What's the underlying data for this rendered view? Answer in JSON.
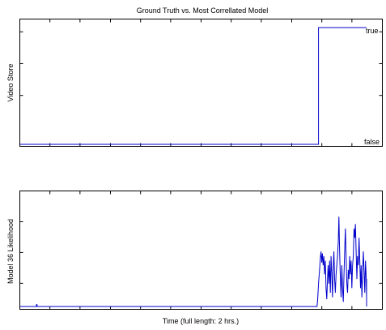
{
  "chart_data": [
    {
      "type": "line",
      "title": "Ground Truth vs. Most Correllated Model",
      "xlabel": "",
      "ylabel": "Video Store",
      "annotations": [
        "true",
        "false"
      ],
      "x_tick_labels": [],
      "y_tick_labels": [],
      "xlim": [
        0,
        1
      ],
      "ylim": [
        0,
        1
      ],
      "colors": {
        "line": "#0000cc"
      },
      "series": [
        {
          "x": [
            0.0,
            0.831,
            0.831,
            0.965
          ],
          "y": [
            0,
            0,
            1,
            1
          ]
        }
      ]
    },
    {
      "type": "line",
      "title": "",
      "xlabel": "Time (full length: 2 hrs.)",
      "ylabel": "Model 36 Likelihood",
      "x_tick_labels": [],
      "y_tick_labels": [],
      "xlim": [
        0,
        1
      ],
      "ylim": [
        0,
        1
      ],
      "colors": {
        "line": "#0000cc"
      },
      "series": [
        {
          "x": [
            0.0,
            0.045,
            0.045,
            0.047,
            0.047,
            0.827,
            0.829,
            0.831,
            0.834,
            0.836,
            0.838,
            0.84,
            0.842,
            0.844,
            0.846,
            0.848,
            0.85,
            0.852,
            0.854,
            0.856,
            0.858,
            0.86,
            0.862,
            0.864,
            0.866,
            0.868,
            0.87,
            0.872,
            0.874,
            0.876,
            0.878,
            0.88,
            0.882,
            0.884,
            0.886,
            0.888,
            0.89,
            0.892,
            0.894,
            0.896,
            0.898,
            0.9,
            0.902,
            0.904,
            0.906,
            0.908,
            0.91,
            0.912,
            0.914,
            0.916,
            0.918,
            0.92,
            0.922,
            0.924,
            0.926,
            0.928,
            0.93,
            0.932,
            0.934,
            0.936,
            0.938,
            0.94,
            0.942,
            0.944,
            0.946,
            0.948,
            0.95,
            0.952,
            0.954,
            0.956,
            0.958,
            0.96,
            0.962,
            0.964,
            0.966,
            0.968,
            0.97,
            0.972,
            0.974,
            0.976,
            0.978,
            0.98,
            0.982,
            0.984,
            0.986,
            0.988,
            0.99,
            0.992,
            0.994,
            0.996,
            0.998,
            1.0,
            1.002,
            1.004,
            1.01,
            1.03
          ],
          "y": [
            0.0,
            0.0,
            0.02,
            0.02,
            0.0,
            0.0,
            0.1,
            0.25,
            0.4,
            0.52,
            0.6,
            0.48,
            0.58,
            0.45,
            0.55,
            0.35,
            0.5,
            0.2,
            0.08,
            0.3,
            0.45,
            0.25,
            0.5,
            0.15,
            0.55,
            0.35,
            0.1,
            0.4,
            0.6,
            0.3,
            0.15,
            0.35,
            0.45,
            0.55,
            0.7,
            0.98,
            0.6,
            0.3,
            0.1,
            0.45,
            0.2,
            0.05,
            0.35,
            0.6,
            0.85,
            0.55,
            0.25,
            0.15,
            0.4,
            0.3,
            0.55,
            0.35,
            0.5,
            0.2,
            0.45,
            0.55,
            0.85,
            0.75,
            0.9,
            0.6,
            0.3,
            0.55,
            0.45,
            0.75,
            0.5,
            0.2,
            0.45,
            0.1,
            0.35,
            0.6,
            0.4,
            0.15,
            0.5,
            0.3,
            0.1,
            0.25,
            0.05,
            0.3,
            0.1,
            0.2,
            0.05,
            0.15,
            0.3,
            0.1,
            0.25,
            0.05,
            0.2,
            0.12,
            0.05,
            0.1,
            0.02,
            0.0,
            0.0,
            0.0,
            0.0,
            0.0
          ]
        }
      ]
    }
  ]
}
